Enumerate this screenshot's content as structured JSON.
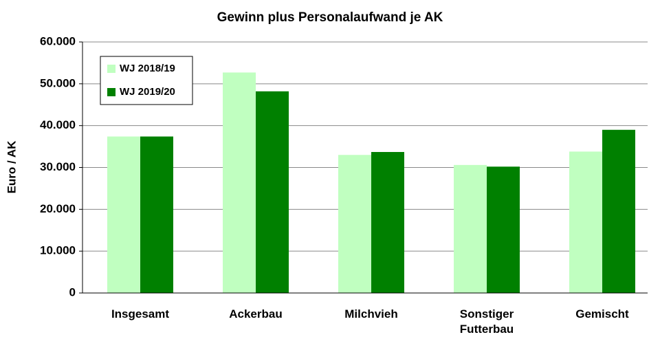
{
  "chart_data": {
    "type": "bar",
    "title": "Gewinn plus Personalaufwand je AK",
    "ylabel": "Euro / AK",
    "categories": [
      "Insgesamt",
      "Ackerbau",
      "Milchvieh",
      "Sonstiger Futterbau",
      "Gemischt"
    ],
    "series": [
      {
        "name": "WJ 2018/19",
        "color": "#c0ffc0",
        "values": [
          37400,
          52700,
          33000,
          30600,
          33800
        ]
      },
      {
        "name": "WJ 2019/20",
        "color": "#008000",
        "values": [
          37400,
          48200,
          33700,
          30200,
          39000
        ]
      }
    ],
    "ylim": [
      0,
      60000
    ],
    "yticks": [
      0,
      {
        "value": 10000,
        "label": "10.000"
      },
      {
        "value": 20000,
        "label": "20.000"
      },
      {
        "value": 30000,
        "label": "30.000"
      },
      {
        "value": 40000,
        "label": "40.000"
      },
      {
        "value": 50000,
        "label": "50.000"
      },
      {
        "value": 60000,
        "label": "60.000"
      }
    ],
    "grid": true,
    "legend": "upper left"
  }
}
